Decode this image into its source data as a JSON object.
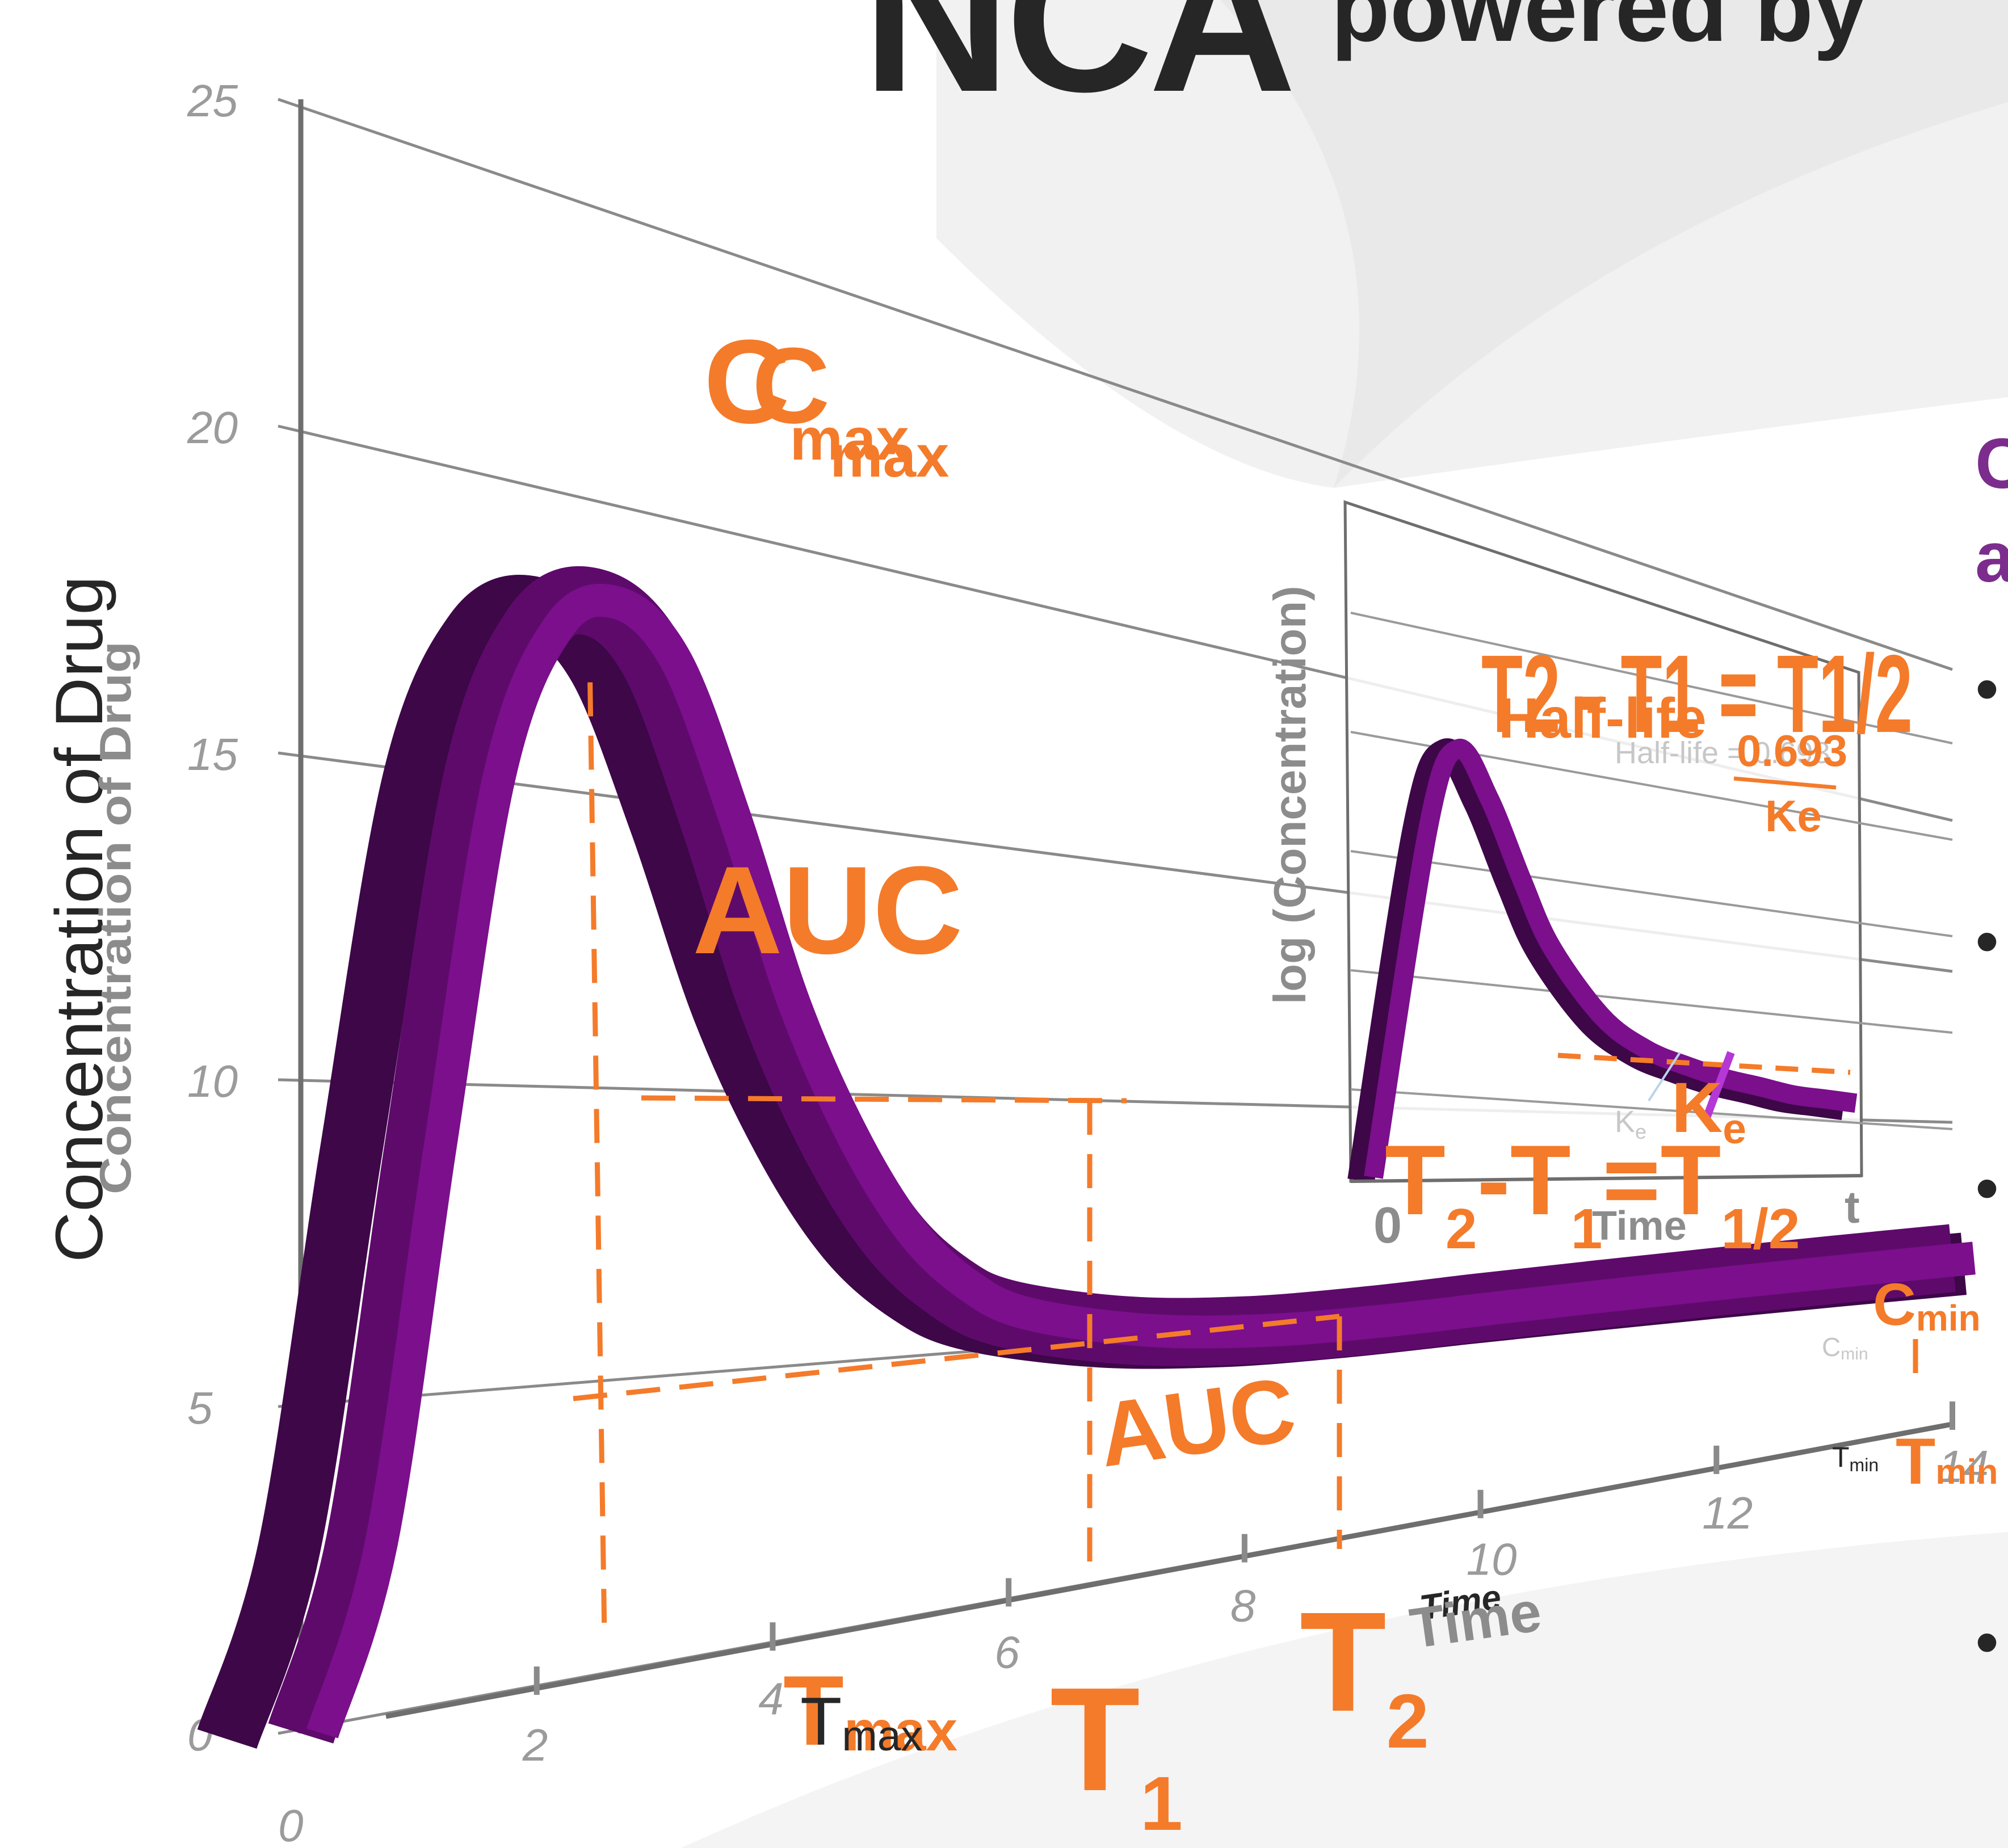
{
  "header": {
    "title": "NCA",
    "subtitle": "powered by",
    "side_letters": [
      "C",
      "a"
    ],
    "bullet": "•"
  },
  "colors": {
    "ribbon_front": "#7b0f8c",
    "ribbon_top": "#5e0a6b",
    "ribbon_back": "#3d0748",
    "accent": "#f47b2a"
  },
  "chart_data": [
    {
      "type": "line",
      "title": "",
      "xlabel": "Time",
      "ylabel": "Concentration of Drug",
      "xlim": [
        0,
        14
      ],
      "ylim": [
        0,
        25
      ],
      "x_ticks": [
        "0",
        "2",
        "4",
        "6",
        "8",
        "10",
        "12",
        "14"
      ],
      "y_ticks": [
        "0",
        "5",
        "10",
        "15",
        "20",
        "25"
      ],
      "series": [
        {
          "x": [
            0,
            0.5,
            1,
            1.5,
            2,
            2.5,
            3,
            3.5,
            4,
            4.5,
            5,
            5.5,
            6,
            7,
            8,
            9,
            10,
            11,
            12,
            13,
            14
          ],
          "y": [
            0,
            2.8,
            9,
            15,
            17.6,
            18.2,
            17.4,
            14.8,
            11.6,
            9.2,
            7.4,
            6.3,
            5.7,
            5.2,
            5.0,
            5.0,
            5.1,
            5.2,
            5.3,
            5.4,
            5.5
          ]
        }
      ],
      "annotations": {
        "cmax": {
          "main": "C",
          "sub": "max"
        },
        "cmax_echo": {
          "main": "C",
          "sub": "max"
        },
        "auc_large": "AUC",
        "auc_small": "AUC",
        "tmax": {
          "main": "T",
          "sub": "max"
        },
        "tmax_echo": {
          "main": "T",
          "sub": "max"
        },
        "t1": {
          "main": "T",
          "sub": "1"
        },
        "t2": {
          "main": "T",
          "sub": "2"
        },
        "cmin": {
          "main": "C",
          "sub": "min"
        },
        "cmin_echo": {
          "main": "C",
          "sub": "min"
        },
        "tmin": {
          "main": "T",
          "sub": "min"
        },
        "tmin_echo": {
          "main": "T",
          "sub": "min"
        },
        "xlabel_echo": "Time",
        "ylabel_echo": "Concentration of Drug"
      }
    },
    {
      "type": "line",
      "title": "",
      "xlabel": "Time",
      "ylabel": "log (Concentration)",
      "x_ticks": [
        "0",
        "t"
      ],
      "series": [
        {
          "x": [
            0,
            0.3,
            0.6,
            1,
            1.5,
            2,
            3,
            4,
            5,
            6,
            7,
            8,
            9,
            10
          ],
          "y": [
            0,
            8.5,
            10.4,
            9.2,
            7.2,
            5.6,
            3.9,
            3.1,
            2.7,
            2.4,
            2.2,
            2.0,
            1.9,
            1.8
          ]
        }
      ],
      "annotations": {
        "top_formula": "T2 - T1 = T1/2",
        "half_life_label": "Half-life",
        "half_life_numerator": "0.693",
        "half_life_denominator": "Ke",
        "half_life_echo": "Half-life = 0.693",
        "ke": {
          "main": "K",
          "sub": "e"
        },
        "ke_echo": {
          "main": "K",
          "sub": "e"
        },
        "bottom_formula": {
          "a": "T",
          "a_sub": "2",
          "b": "T",
          "b_sub": "1",
          "c": "T",
          "c_sub": "1/2"
        }
      }
    }
  ]
}
